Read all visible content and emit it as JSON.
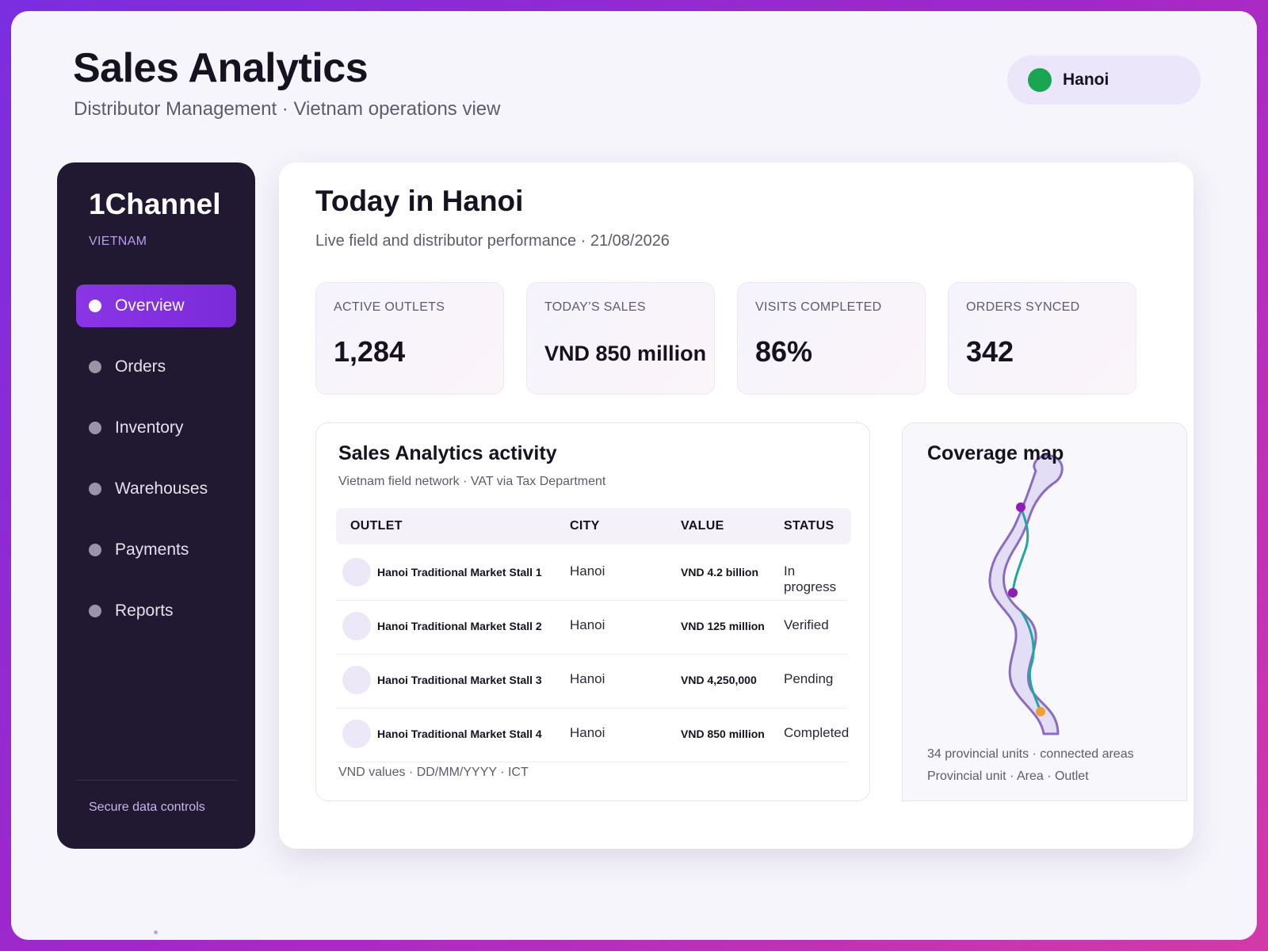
{
  "header": {
    "title": "Sales Analytics",
    "subtitle": "Distributor Management · Vietnam operations view",
    "city": "Hanoi"
  },
  "sidebar": {
    "brand": "1Channel",
    "region": "VIETNAM",
    "items": [
      {
        "label": "Overview",
        "active": true
      },
      {
        "label": "Orders"
      },
      {
        "label": "Inventory"
      },
      {
        "label": "Warehouses"
      },
      {
        "label": "Payments"
      },
      {
        "label": "Reports"
      }
    ],
    "footer": "Secure data controls"
  },
  "main": {
    "title": "Today in Hanoi",
    "subtitle": "Live field and distributor performance · 21/08/2026",
    "kpis": [
      {
        "label": "ACTIVE OUTLETS",
        "value": "1,284"
      },
      {
        "label": "TODAY’S SALES",
        "value": "VND 850 million"
      },
      {
        "label": "VISITS COMPLETED",
        "value": "86%"
      },
      {
        "label": "ORDERS SYNCED",
        "value": "342"
      }
    ]
  },
  "activity": {
    "title": "Sales Analytics activity",
    "subtitle": "Vietnam field network · VAT via Tax Department",
    "columns": [
      "OUTLET",
      "CITY",
      "VALUE",
      "STATUS"
    ],
    "rows": [
      {
        "outlet": "Hanoi Traditional Market Stall 1",
        "city": "Hanoi",
        "value": "VND 4.2 billion",
        "status": "In progress"
      },
      {
        "outlet": "Hanoi Traditional Market Stall 2",
        "city": "Hanoi",
        "value": "VND 125 million",
        "status": "Verified"
      },
      {
        "outlet": "Hanoi Traditional Market Stall 3",
        "city": "Hanoi",
        "value": "VND 4,250,000",
        "status": "Pending"
      },
      {
        "outlet": "Hanoi Traditional Market Stall 4",
        "city": "Hanoi",
        "value": "VND 850 million",
        "status": "Completed"
      }
    ],
    "footer": "VND values · DD/MM/YYYY · ICT"
  },
  "map": {
    "title": "Coverage map",
    "caption1": "34 provincial units · connected areas",
    "caption2": "Provincial unit · Area · Outlet",
    "colors": {
      "outline": "#8a6cc0",
      "fill": "#e4ddf6",
      "route": "#1fa7a0",
      "node": "#8d1fb4",
      "outlet": "#f0a030"
    }
  },
  "colors": {
    "accent": "#8a35e6",
    "sidebar_bg": "#211832",
    "status_online": "#1aa552"
  }
}
